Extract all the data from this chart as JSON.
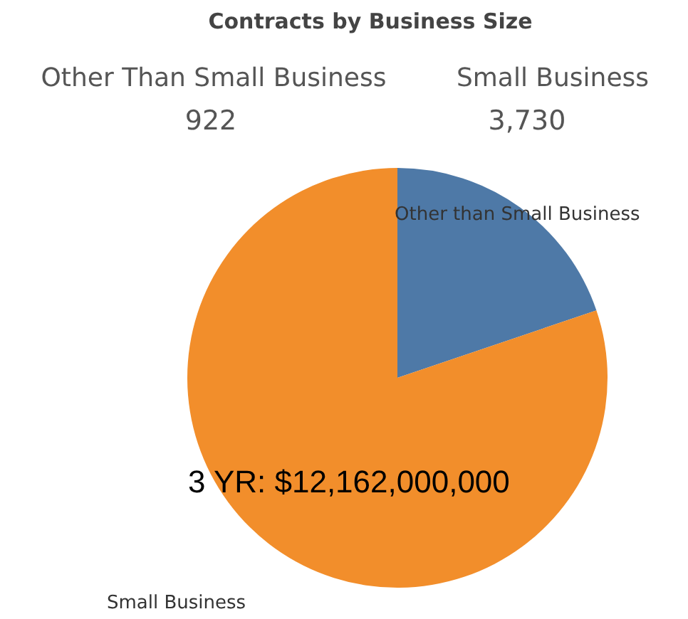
{
  "chart_data": {
    "type": "pie",
    "title": "Contracts by Business Size",
    "categories": [
      "Other than Small Business",
      "Small Business"
    ],
    "values": [
      19.8,
      80.2
    ],
    "colors": [
      "#4e79a7",
      "#f28e2b"
    ],
    "annotations": [
      "Other Than Small Business",
      "922",
      "Small Business",
      "3,730",
      "3 YR: $12,162,000,000"
    ]
  }
}
